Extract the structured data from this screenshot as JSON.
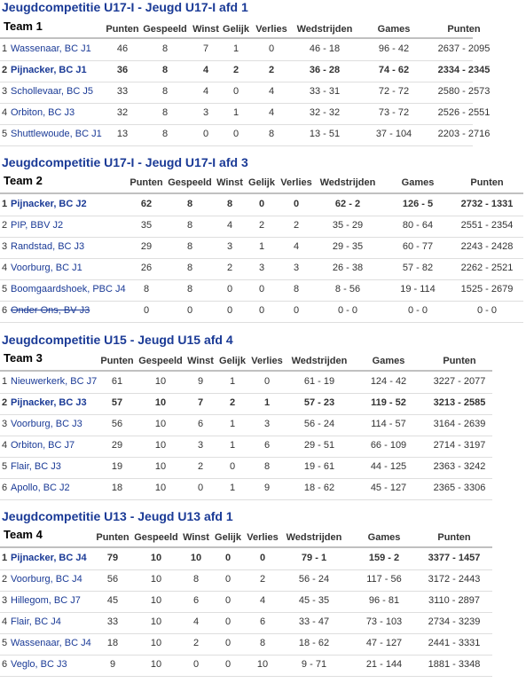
{
  "sections": [
    {
      "competition": "Jeugdcompetitie U17-I - Jeugd U17-I afd 1",
      "team_label": "Team 1",
      "headers": [
        "Punten",
        "Gespeeld",
        "Winst",
        "Gelijk",
        "Verlies",
        "Wedstrijden",
        "Games",
        "Punten"
      ],
      "rows": [
        {
          "pos": "1",
          "team": "Wassenaar, BC J1",
          "punten": "46",
          "gespeeld": "8",
          "winst": "7",
          "gelijk": "1",
          "verlies": "0",
          "wedstrijden": "46 - 18",
          "games": "96 - 42",
          "punten_score": "2637 - 2095"
        },
        {
          "pos": "2",
          "team": "Pijnacker, BC J1",
          "punten": "36",
          "gespeeld": "8",
          "winst": "4",
          "gelijk": "2",
          "verlies": "2",
          "wedstrijden": "36 - 28",
          "games": "74 - 62",
          "punten_score": "2334 - 2345"
        },
        {
          "pos": "3",
          "team": "Schollevaar, BC J5",
          "punten": "33",
          "gespeeld": "8",
          "winst": "4",
          "gelijk": "0",
          "verlies": "4",
          "wedstrijden": "33 - 31",
          "games": "72 - 72",
          "punten_score": "2580 - 2573"
        },
        {
          "pos": "4",
          "team": "Orbiton, BC J3",
          "punten": "32",
          "gespeeld": "8",
          "winst": "3",
          "gelijk": "1",
          "verlies": "4",
          "wedstrijden": "32 - 32",
          "games": "73 - 72",
          "punten_score": "2526 - 2551"
        },
        {
          "pos": "5",
          "team": "Shuttlewoude, BC J1",
          "punten": "13",
          "gespeeld": "8",
          "winst": "0",
          "gelijk": "0",
          "verlies": "8",
          "wedstrijden": "13 - 51",
          "games": "37 - 104",
          "punten_score": "2203 - 2716"
        }
      ]
    },
    {
      "competition": "Jeugdcompetitie U17-I - Jeugd U17-I afd 3",
      "team_label": "Team 2",
      "headers": [
        "Punten",
        "Gespeeld",
        "Winst",
        "Gelijk",
        "Verlies",
        "Wedstrijden",
        "Games",
        "Punten"
      ],
      "rows": [
        {
          "pos": "1",
          "team": "Pijnacker, BC J2",
          "punten": "62",
          "gespeeld": "8",
          "winst": "8",
          "gelijk": "0",
          "verlies": "0",
          "wedstrijden": "62 - 2",
          "games": "126 - 5",
          "punten_score": "2732 - 1331"
        },
        {
          "pos": "2",
          "team": "PIP, BBV J2",
          "punten": "35",
          "gespeeld": "8",
          "winst": "4",
          "gelijk": "2",
          "verlies": "2",
          "wedstrijden": "35 - 29",
          "games": "80 - 64",
          "punten_score": "2551 - 2354"
        },
        {
          "pos": "3",
          "team": "Randstad, BC J3",
          "punten": "29",
          "gespeeld": "8",
          "winst": "3",
          "gelijk": "1",
          "verlies": "4",
          "wedstrijden": "29 - 35",
          "games": "60 - 77",
          "punten_score": "2243 - 2428"
        },
        {
          "pos": "4",
          "team": "Voorburg, BC J1",
          "punten": "26",
          "gespeeld": "8",
          "winst": "2",
          "gelijk": "3",
          "verlies": "3",
          "wedstrijden": "26 - 38",
          "games": "57 - 82",
          "punten_score": "2262 - 2521"
        },
        {
          "pos": "5",
          "team": "Boomgaardshoek, PBC J4",
          "punten": "8",
          "gespeeld": "8",
          "winst": "0",
          "gelijk": "0",
          "verlies": "8",
          "wedstrijden": "8 - 56",
          "games": "19 - 114",
          "punten_score": "1525 - 2679"
        },
        {
          "pos": "6",
          "team": "Onder Ons, BV J3",
          "punten": "0",
          "gespeeld": "0",
          "winst": "0",
          "gelijk": "0",
          "verlies": "0",
          "wedstrijden": "0 - 0",
          "games": "0 - 0",
          "punten_score": "0 - 0"
        }
      ]
    },
    {
      "competition": "Jeugdcompetitie U15 - Jeugd U15 afd 4",
      "team_label": "Team 3",
      "headers": [
        "Punten",
        "Gespeeld",
        "Winst",
        "Gelijk",
        "Verlies",
        "Wedstrijden",
        "Games",
        "Punten"
      ],
      "rows": [
        {
          "pos": "1",
          "team": "Nieuwerkerk, BC J7",
          "punten": "61",
          "gespeeld": "10",
          "winst": "9",
          "gelijk": "1",
          "verlies": "0",
          "wedstrijden": "61 - 19",
          "games": "124 - 42",
          "punten_score": "3227 - 2077"
        },
        {
          "pos": "2",
          "team": "Pijnacker, BC J3",
          "punten": "57",
          "gespeeld": "10",
          "winst": "7",
          "gelijk": "2",
          "verlies": "1",
          "wedstrijden": "57 - 23",
          "games": "119 - 52",
          "punten_score": "3213 - 2585"
        },
        {
          "pos": "3",
          "team": "Voorburg, BC J3",
          "punten": "56",
          "gespeeld": "10",
          "winst": "6",
          "gelijk": "1",
          "verlies": "3",
          "wedstrijden": "56 - 24",
          "games": "114 - 57",
          "punten_score": "3164 - 2639"
        },
        {
          "pos": "4",
          "team": "Orbiton, BC J7",
          "punten": "29",
          "gespeeld": "10",
          "winst": "3",
          "gelijk": "1",
          "verlies": "6",
          "wedstrijden": "29 - 51",
          "games": "66 - 109",
          "punten_score": "2714 - 3197"
        },
        {
          "pos": "5",
          "team": "Flair, BC J3",
          "punten": "19",
          "gespeeld": "10",
          "winst": "2",
          "gelijk": "0",
          "verlies": "8",
          "wedstrijden": "19 - 61",
          "games": "44 - 125",
          "punten_score": "2363 - 3242"
        },
        {
          "pos": "6",
          "team": "Apollo, BC J2",
          "punten": "18",
          "gespeeld": "10",
          "winst": "0",
          "gelijk": "1",
          "verlies": "9",
          "wedstrijden": "18 - 62",
          "games": "45 - 127",
          "punten_score": "2365 - 3306"
        }
      ]
    },
    {
      "competition": "Jeugdcompetitie U13 - Jeugd U13 afd 1",
      "team_label": "Team 4",
      "headers": [
        "Punten",
        "Gespeeld",
        "Winst",
        "Gelijk",
        "Verlies",
        "Wedstrijden",
        "Games",
        "Punten"
      ],
      "rows": [
        {
          "pos": "1",
          "team": "Pijnacker, BC J4",
          "punten": "79",
          "gespeeld": "10",
          "winst": "10",
          "gelijk": "0",
          "verlies": "0",
          "wedstrijden": "79 - 1",
          "games": "159 - 2",
          "punten_score": "3377 - 1457"
        },
        {
          "pos": "2",
          "team": "Voorburg, BC J4",
          "punten": "56",
          "gespeeld": "10",
          "winst": "8",
          "gelijk": "0",
          "verlies": "2",
          "wedstrijden": "56 - 24",
          "games": "117 - 56",
          "punten_score": "3172 - 2443"
        },
        {
          "pos": "3",
          "team": "Hillegom, BC J7",
          "punten": "45",
          "gespeeld": "10",
          "winst": "6",
          "gelijk": "0",
          "verlies": "4",
          "wedstrijden": "45 - 35",
          "games": "96 - 81",
          "punten_score": "3110 - 2897"
        },
        {
          "pos": "4",
          "team": "Flair, BC J4",
          "punten": "33",
          "gespeeld": "10",
          "winst": "4",
          "gelijk": "0",
          "verlies": "6",
          "wedstrijden": "33 - 47",
          "games": "73 - 103",
          "punten_score": "2734 - 3239"
        },
        {
          "pos": "5",
          "team": "Wassenaar, BC J4",
          "punten": "18",
          "gespeeld": "10",
          "winst": "2",
          "gelijk": "0",
          "verlies": "8",
          "wedstrijden": "18 - 62",
          "games": "47 - 127",
          "punten_score": "2441 - 3331"
        },
        {
          "pos": "6",
          "team": "Veglo, BC J3",
          "punten": "9",
          "gespeeld": "10",
          "winst": "0",
          "gelijk": "0",
          "verlies": "10",
          "wedstrijden": "9 - 71",
          "games": "21 - 144",
          "punten_score": "1881 - 3348"
        }
      ]
    }
  ],
  "colors": {
    "link": "#1a3a96",
    "header_line": "#c0c0c0",
    "row_line": "#dedede",
    "text": "#333333"
  }
}
